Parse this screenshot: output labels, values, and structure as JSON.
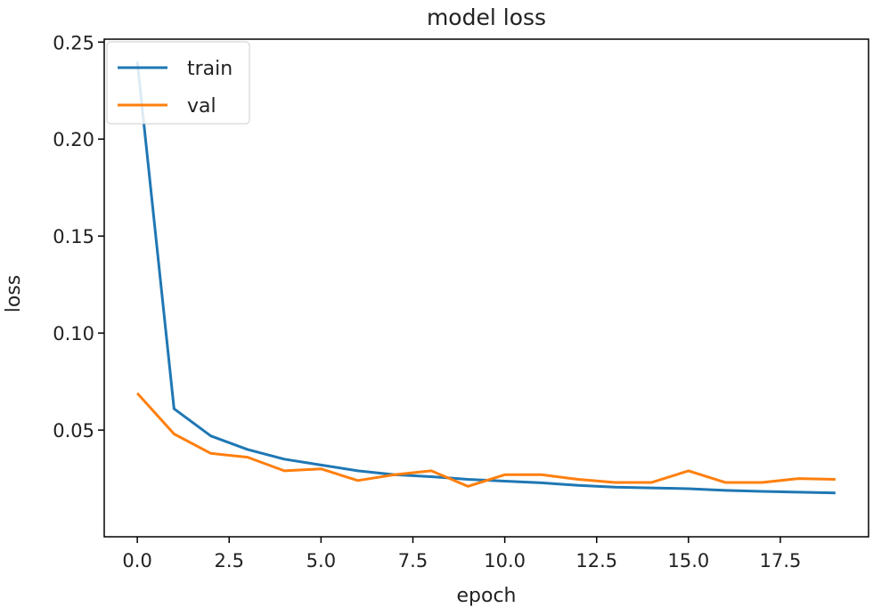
{
  "chart_data": {
    "type": "line",
    "title": "model loss",
    "xlabel": "epoch",
    "ylabel": "loss",
    "xlim": [
      -0.9,
      19.9
    ],
    "ylim": [
      -0.005,
      0.2515
    ],
    "xticks": [
      0.0,
      2.5,
      5.0,
      7.5,
      10.0,
      12.5,
      15.0,
      17.5
    ],
    "xtick_labels": [
      "0.0",
      "2.5",
      "5.0",
      "7.5",
      "10.0",
      "12.5",
      "15.0",
      "17.5"
    ],
    "yticks": [
      0.05,
      0.1,
      0.15,
      0.2,
      0.25
    ],
    "ytick_labels": [
      "0.05",
      "0.10",
      "0.15",
      "0.20",
      "0.25"
    ],
    "grid": false,
    "legend_position": "top-left",
    "x": [
      0,
      1,
      2,
      3,
      4,
      5,
      6,
      7,
      8,
      9,
      10,
      11,
      12,
      13,
      14,
      15,
      16,
      17,
      18,
      19
    ],
    "series": [
      {
        "name": "train",
        "color": "#1f77b4",
        "values": [
          0.24,
          0.061,
          0.047,
          0.04,
          0.035,
          0.032,
          0.029,
          0.027,
          0.026,
          0.0246,
          0.0237,
          0.0228,
          0.0215,
          0.0206,
          0.0202,
          0.0198,
          0.0189,
          0.0184,
          0.018,
          0.0176
        ]
      },
      {
        "name": "val",
        "color": "#ff7f0e",
        "values": [
          0.069,
          0.048,
          0.038,
          0.036,
          0.029,
          0.03,
          0.024,
          0.027,
          0.029,
          0.021,
          0.027,
          0.027,
          0.0246,
          0.023,
          0.023,
          0.029,
          0.023,
          0.023,
          0.025,
          0.0246
        ]
      }
    ]
  }
}
